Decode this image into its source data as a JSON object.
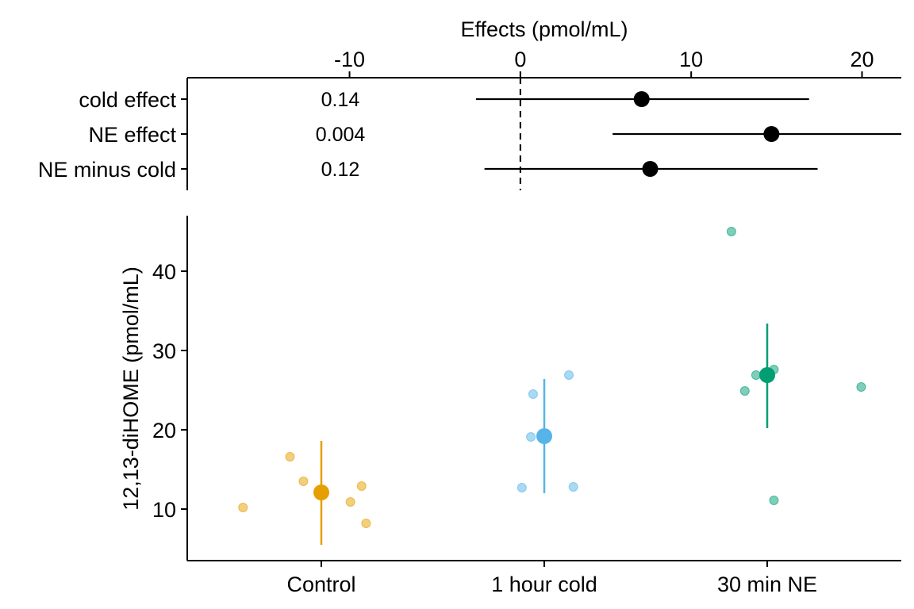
{
  "chart_data": [
    {
      "type": "forest",
      "title": "",
      "xlabel": "Effects (pmol/mL)",
      "xlim": [
        -19.5,
        22.3
      ],
      "xticks": [
        -10,
        0,
        10,
        20
      ],
      "xtick_labels": [
        "-10",
        "0",
        "10",
        "20"
      ],
      "zero_line": 0,
      "rows": [
        {
          "label": "cold effect",
          "estimate": 7.1,
          "lower": -2.6,
          "upper": 16.9,
          "p_value": "0.14"
        },
        {
          "label": "NE effect",
          "estimate": 14.7,
          "lower": 5.4,
          "upper": 22.3,
          "p_value": "0.004"
        },
        {
          "label": "NE minus cold",
          "estimate": 7.6,
          "lower": -2.1,
          "upper": 17.4,
          "p_value": "0.12"
        }
      ]
    },
    {
      "type": "scatter",
      "title": "",
      "ylabel": "12,13-diHOME (pmol/mL)",
      "ylim": [
        3.5,
        47
      ],
      "yticks": [
        10,
        20,
        30,
        40
      ],
      "ytick_labels": [
        "10",
        "20",
        "30",
        "40"
      ],
      "categories": [
        "Control",
        "1 hour cold",
        "30 min NE"
      ],
      "groups": [
        {
          "name": "Control",
          "color": "#E69F00",
          "mean": 12.1,
          "ci": [
            5.5,
            18.6
          ],
          "points": [
            {
              "jitter": -0.35,
              "y": 10.2
            },
            {
              "jitter": -0.14,
              "y": 16.6
            },
            {
              "jitter": -0.08,
              "y": 13.5
            },
            {
              "jitter": 0.13,
              "y": 10.9
            },
            {
              "jitter": 0.18,
              "y": 12.9
            },
            {
              "jitter": 0.2,
              "y": 8.2
            }
          ]
        },
        {
          "name": "1 hour cold",
          "color": "#56B4E9",
          "mean": 19.2,
          "ci": [
            12.0,
            26.4
          ],
          "points": [
            {
              "jitter": -0.1,
              "y": 12.7
            },
            {
              "jitter": -0.06,
              "y": 19.1
            },
            {
              "jitter": -0.05,
              "y": 24.5
            },
            {
              "jitter": 0.11,
              "y": 26.9
            },
            {
              "jitter": 0.13,
              "y": 12.8
            }
          ]
        },
        {
          "name": "30 min NE",
          "color": "#009E73",
          "mean": 26.9,
          "ci": [
            20.2,
            33.4
          ],
          "points": [
            {
              "jitter": -0.16,
              "y": 45.0
            },
            {
              "jitter": -0.1,
              "y": 24.9
            },
            {
              "jitter": -0.05,
              "y": 26.9
            },
            {
              "jitter": 0.03,
              "y": 27.6
            },
            {
              "jitter": 0.03,
              "y": 11.1
            },
            {
              "jitter": 0.42,
              "y": 25.4
            }
          ]
        }
      ]
    }
  ]
}
